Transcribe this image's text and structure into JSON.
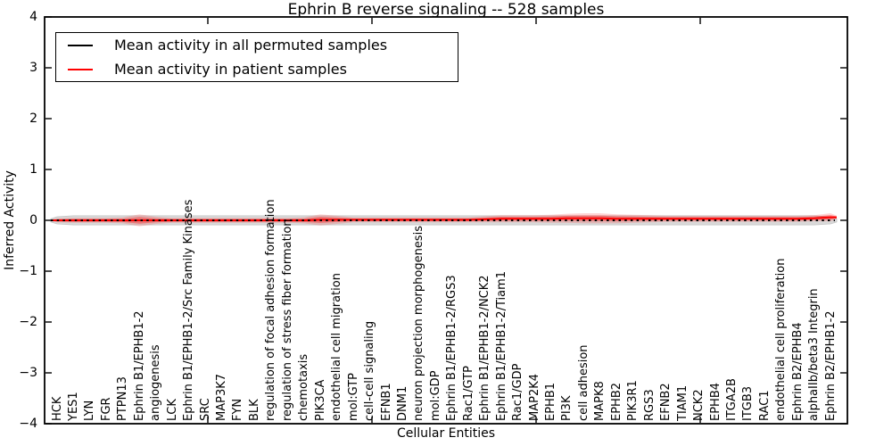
{
  "title": "Ephrin B reverse signaling -- 528 samples",
  "axes": {
    "xlabel": "Cellular Entities",
    "ylabel": "Inferred Activity"
  },
  "legend": [
    {
      "label": "Mean activity in all permuted samples",
      "color": "#000000"
    },
    {
      "label": "Mean activity in patient samples",
      "color": "#ff0000"
    }
  ],
  "colors": {
    "permuted_line": "#000000",
    "patient_line": "#ff0000",
    "permuted_band": "#d9d9d9",
    "patient_band_outer": "rgba(255,0,0,0.16)",
    "patient_band_inner": "rgba(255,0,0,0.34)",
    "spine": "#000000",
    "background": "#ffffff"
  },
  "chart_data": {
    "type": "line",
    "subtype": "mean-activity-with-violin-spread",
    "title": "Ephrin B reverse signaling -- 528 samples",
    "xlabel": "Cellular Entities",
    "ylabel": "Inferred Activity",
    "ylim": [
      -4,
      4
    ],
    "yticks": [
      4,
      3,
      2,
      1,
      0,
      -1,
      -2,
      -3,
      -4
    ],
    "grid": false,
    "legend_position": "upper left",
    "categories": [
      "HCK",
      "YES1",
      "LYN",
      "FGR",
      "PTPN13",
      "Ephrin B1/EPHB1-2",
      "angiogenesis",
      "LCK",
      "Ephrin B1/EPHB1-2/Src Family Kinases",
      "SRC",
      "MAP3K7",
      "FYN",
      "BLK",
      "regulation of focal adhesion formation",
      "regulation of stress fiber formation",
      "chemotaxis",
      "PIK3CA",
      "endothelial cell migration",
      "mol:GTP",
      "cell-cell signaling",
      "EFNB1",
      "DNM1",
      "neuron projection morphogenesis",
      "mol:GDP",
      "Ephrin B1/EPHB1-2/RGS3",
      "Rac1/GTP",
      "Ephrin B1/EPHB1-2/NCK2",
      "Ephrin B1/EPHB1-2/Tiam1",
      "Rac1/GDP",
      "MAP2K4",
      "EPHB1",
      "PI3K",
      "cell adhesion",
      "MAPK8",
      "EPHB2",
      "PIK3R1",
      "RGS3",
      "EFNB2",
      "TIAM1",
      "NCK2",
      "EPHB4",
      "ITGA2B",
      "ITGB3",
      "RAC1",
      "endothelial cell proliferation",
      "Ephrin B2/EPHB4",
      "alphaIIb/beta3 Integrin",
      "Ephrin B2/EPHB1-2"
    ],
    "series": [
      {
        "name": "Mean activity in all permuted samples",
        "color": "#000000",
        "line_style": "dashed",
        "values": [
          0,
          0,
          0,
          0,
          0,
          0,
          0,
          0,
          0,
          0,
          0,
          0,
          0,
          0,
          0,
          0,
          0,
          0,
          0,
          0,
          0,
          0,
          0,
          0,
          0,
          0,
          0,
          0,
          0,
          0,
          0,
          0,
          0,
          0,
          0,
          0,
          0,
          0,
          0,
          0,
          0,
          0,
          0,
          0,
          0,
          0,
          0,
          0
        ],
        "spread": [
          0.07,
          0.09,
          0.09,
          0.09,
          0.09,
          0.09,
          0.09,
          0.09,
          0.09,
          0.09,
          0.09,
          0.09,
          0.09,
          0.09,
          0.09,
          0.09,
          0.09,
          0.09,
          0.09,
          0.09,
          0.09,
          0.09,
          0.09,
          0.09,
          0.09,
          0.09,
          0.09,
          0.09,
          0.09,
          0.09,
          0.09,
          0.09,
          0.09,
          0.09,
          0.09,
          0.09,
          0.09,
          0.09,
          0.09,
          0.09,
          0.09,
          0.09,
          0.09,
          0.09,
          0.09,
          0.09,
          0.09,
          0.07
        ]
      },
      {
        "name": "Mean activity in patient samples",
        "color": "#ff0000",
        "line_style": "solid",
        "values": [
          0,
          0,
          0,
          0,
          0,
          0,
          0,
          0,
          0,
          0,
          0,
          0,
          0,
          0,
          0,
          0,
          0.01,
          0.01,
          0.01,
          0.01,
          0.01,
          0.01,
          0.01,
          0.01,
          0.01,
          0.01,
          0.02,
          0.03,
          0.03,
          0.03,
          0.03,
          0.04,
          0.04,
          0.04,
          0.03,
          0.03,
          0.03,
          0.03,
          0.03,
          0.03,
          0.03,
          0.03,
          0.03,
          0.03,
          0.03,
          0.03,
          0.04,
          0.06
        ],
        "spread": [
          0.04,
          0.05,
          0.05,
          0.05,
          0.06,
          0.12,
          0.07,
          0.05,
          0.05,
          0.05,
          0.05,
          0.05,
          0.05,
          0.05,
          0.05,
          0.06,
          0.11,
          0.08,
          0.05,
          0.05,
          0.05,
          0.05,
          0.05,
          0.05,
          0.05,
          0.05,
          0.06,
          0.07,
          0.07,
          0.07,
          0.08,
          0.09,
          0.1,
          0.1,
          0.09,
          0.08,
          0.07,
          0.06,
          0.06,
          0.06,
          0.06,
          0.06,
          0.06,
          0.06,
          0.06,
          0.06,
          0.06,
          0.08
        ]
      }
    ]
  }
}
